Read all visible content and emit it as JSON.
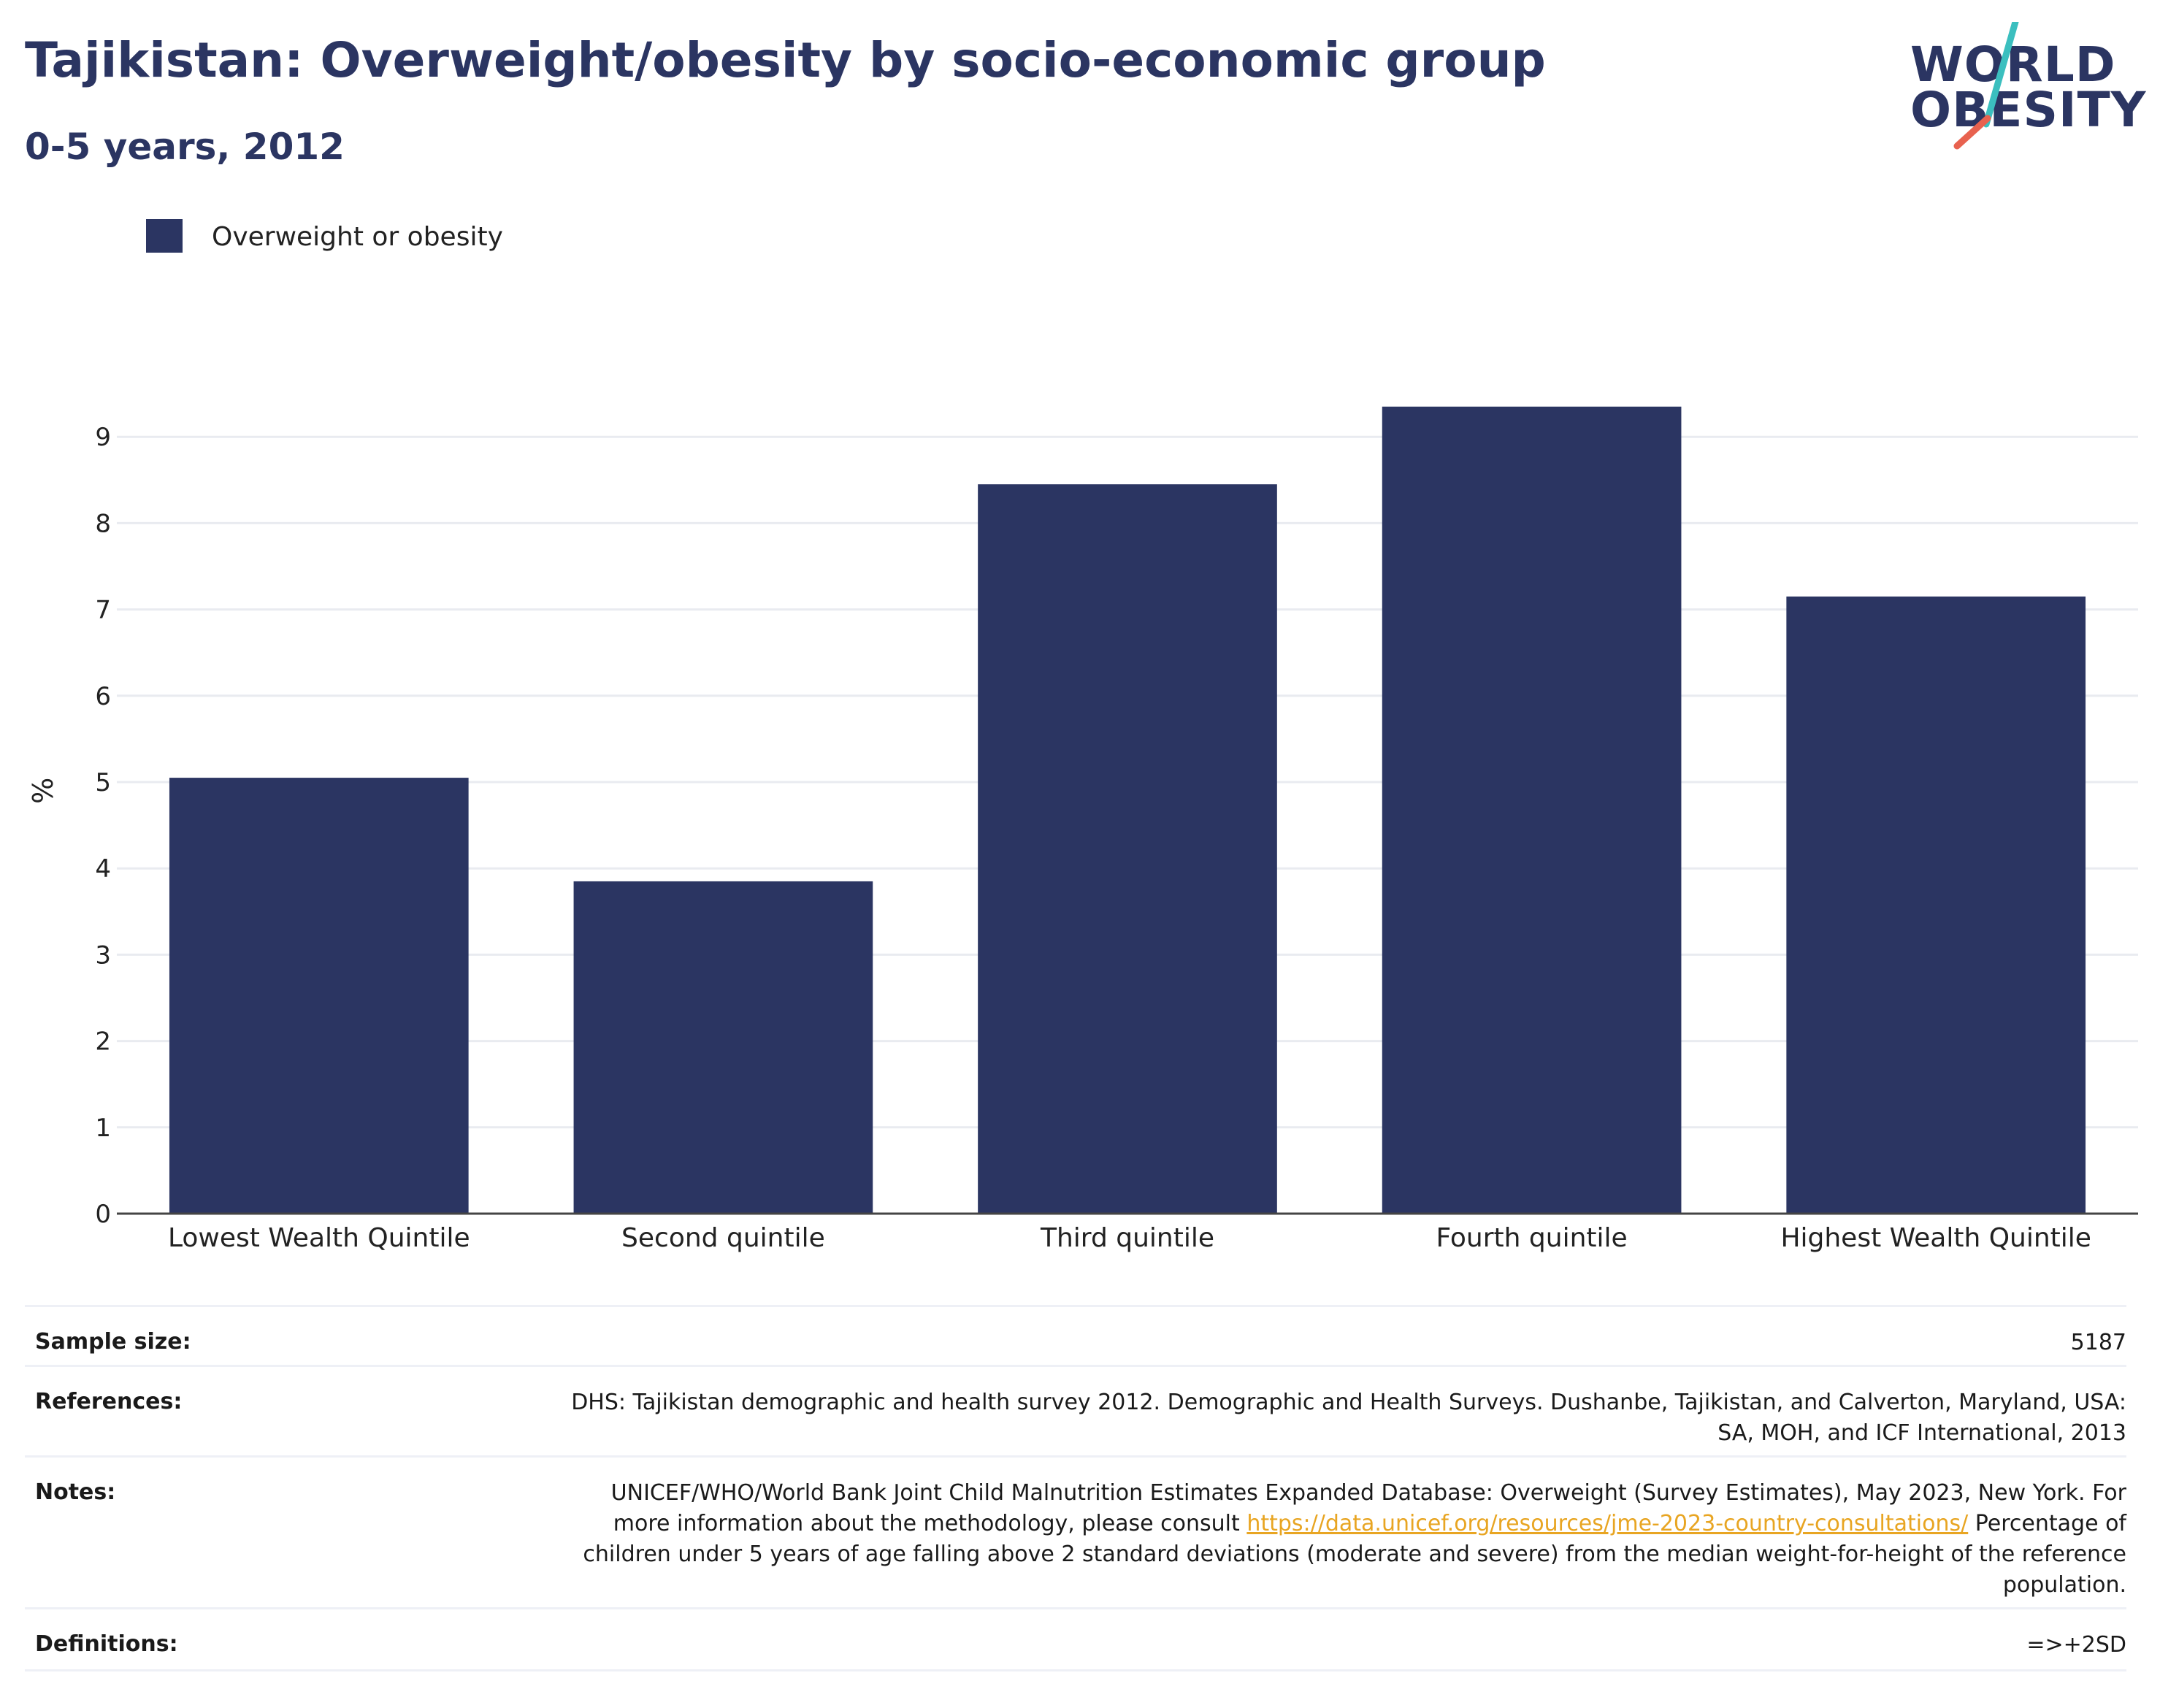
{
  "header": {
    "title": "Tajikistan: Overweight/obesity by socio-economic group",
    "subtitle": "0-5 years, 2012"
  },
  "logo": {
    "line1": "WORLD",
    "line2": "OBESITY",
    "colors": {
      "text": "#2b3562",
      "slash_top": "#3bbfbf",
      "slash_bottom": "#e8624f"
    }
  },
  "legend": {
    "label": "Overweight or obesity",
    "color": "#2b3562"
  },
  "chart_data": {
    "type": "bar",
    "categories": [
      "Lowest Wealth Quintile",
      "Second quintile",
      "Third quintile",
      "Fourth quintile",
      "Highest Wealth Quintile"
    ],
    "series": [
      {
        "name": "Overweight or obesity",
        "values": [
          5.05,
          3.85,
          8.45,
          9.35,
          7.15
        ],
        "color": "#2b3562"
      }
    ],
    "ylabel": "%",
    "xlabel": "",
    "ylim": [
      0,
      9.9
    ],
    "yticks": [
      0,
      1,
      2,
      3,
      4,
      5,
      6,
      7,
      8,
      9
    ],
    "grid": true,
    "legend_position": "top-left"
  },
  "info": {
    "sample_size_label": "Sample size:",
    "sample_size_value": "5187",
    "references_label": "References:",
    "references_text": "DHS: Tajikistan demographic and health survey 2012. Demographic and Health Surveys. Dushanbe, Tajikistan, and Calverton, Maryland, USA: SA, MOH, and ICF International, 2013",
    "notes_label": "Notes:",
    "notes_text_1": "UNICEF/WHO/World Bank Joint Child Malnutrition Estimates Expanded Database: Overweight (Survey Estimates), May 2023, New York. For more information about the methodology, please consult",
    "notes_link": "https://data.unicef.org/resources/jme-2023-country-consultations/",
    "notes_text_2": "Percentage of children under 5 years of age falling above 2 standard deviations (moderate and severe) from the median weight-for-height of the reference population.",
    "definitions_label": "Definitions:",
    "definitions_value": "=>+2SD",
    "link_color": "#e8a522"
  }
}
